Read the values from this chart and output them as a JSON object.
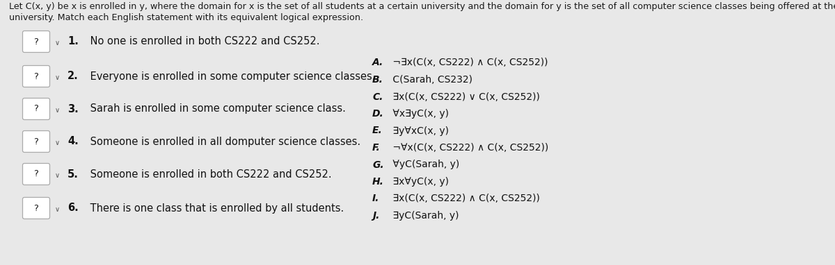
{
  "page_bg": "#e8e8e8",
  "header_line1": "Let C(x, y) be x is enrolled in y, where the domain for x is the set of all students at a certain university and the domain for y is the set of all computer science classes being offered at the",
  "header_line2": "university. Match each English statement with its equivalent logical expression.",
  "header_fontsize": 9.2,
  "questions": [
    "1. No one is enrolled in both CS222 and CS252.",
    "2. Everyone is enrolled in some computer science classes.",
    "3. Sarah is enrolled in some computer science class.",
    "4. Someone is enrolled in all domputer science classes.",
    "5. Someone is enrolled in both CS222 and CS252.",
    "6. There is one class that is enrolled by all students."
  ],
  "answer_lines": [
    "A. ¬x(C(x, CS222) ∧ C(x, CS252))",
    "B. C(Sarah, CS232)",
    "C. x(C(x, CS222) ∨ C(x, CS252))",
    "D. ∀x∃yC(x, y)",
    "E. ∃y∀xC(x, y)",
    "F. ¬∀x(C(x, CS222) ∧ C(x, CS252))",
    "G. ∀yC(Sarah, y)",
    "H. ∃x∀yC(x, y)",
    "I. ∃x(C(x, CS222) ∧ C(x, CS252))",
    "J. ∃yC(Sarah, y)"
  ],
  "answer_fontsize": 10,
  "question_fontsize": 10.5,
  "box_face": "#f5f5f5",
  "box_edge": "#cccccc",
  "qbox_face": "#ffffff",
  "qbox_edge": "#aaaaaa",
  "text_color": "#1a1a1a",
  "text_color_dark": "#111111"
}
